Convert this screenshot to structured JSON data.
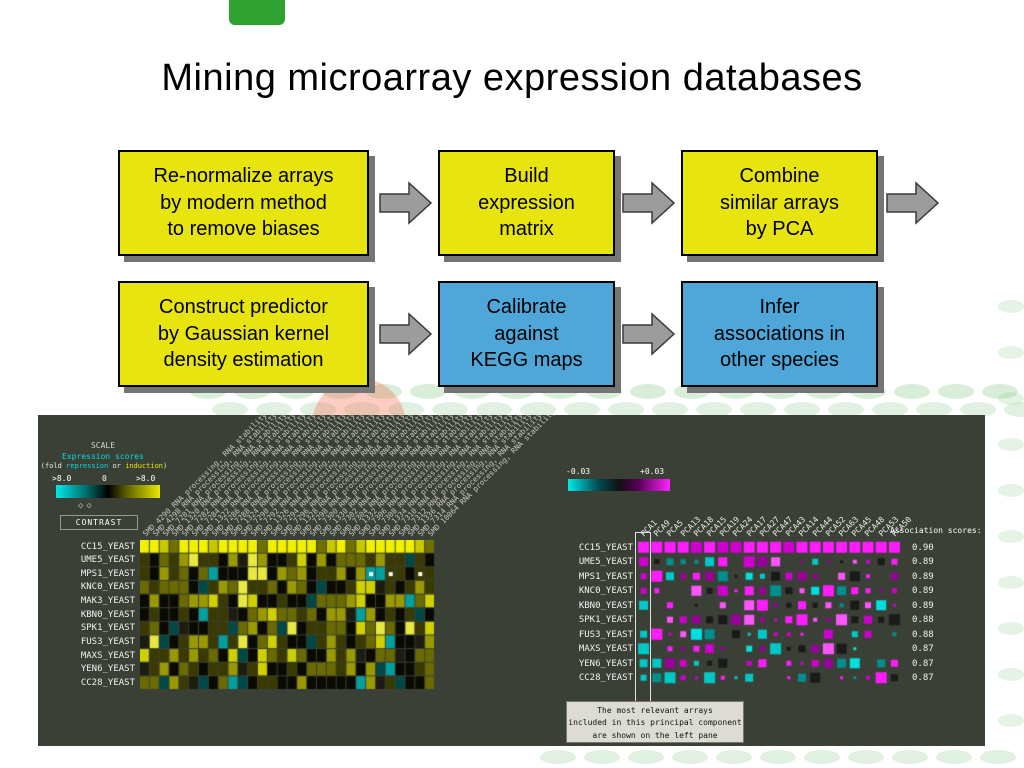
{
  "title": "Mining microarray expression databases",
  "colors": {
    "yellow_box": "#e7e410",
    "blue_box": "#4fa6d8",
    "arrow_fill": "#9c9c9c",
    "viewer_background": "#3b4036",
    "repression_color": "#00dddd",
    "induction_color": "#e8e800",
    "association_positive": "#ff22ff",
    "association_negative": "#00e8e8"
  },
  "flowchart": {
    "row1": [
      {
        "lines": [
          "Re-normalize arrays",
          "by modern method",
          "to remove biases"
        ]
      },
      {
        "lines": [
          "Build",
          "expression",
          "matrix"
        ]
      },
      {
        "lines": [
          "Combine",
          "similar arrays",
          "by PCA"
        ]
      }
    ],
    "row2": [
      {
        "lines": [
          "Construct predictor",
          "by Gaussian kernel",
          "density estimation"
        ]
      },
      {
        "lines": [
          "Calibrate",
          "against",
          "KEGG maps"
        ]
      },
      {
        "lines": [
          "Infer",
          "associations in",
          "other species"
        ]
      }
    ]
  },
  "viewer": {
    "scale": {
      "title": "SCALE",
      "subtitle": "Expression scores",
      "legend_prefix": "(fold ",
      "legend_repression": "repression",
      "legend_or": " or ",
      "legend_induction": "induction",
      "legend_suffix": ")",
      "min_label": ">8.0",
      "zero_label": "0",
      "max_label": ">8.0",
      "contrast_button": "CONTRAST"
    },
    "left_heatmap": {
      "row_labels": [
        "CC15_YEAST",
        "UME5_YEAST",
        "MPS1_YEAST",
        "KNC0_YEAST",
        "MAK3_YEAST",
        "KBN0_YEAST",
        "SPK1_YEAST",
        "FUS3_YEAST",
        "MAXS_YEAST",
        "YEN6_YEAST",
        "CC28_YEAST"
      ],
      "column_labels": [
        "SMD 4290 RNA processing, RNA stability",
        "SMD 4298 RNA processing, RNA stability",
        "SMD 7201 RNA processing, RNA stability",
        "SMD 1320 RNA processing, RNA stability",
        "SMD 7282 RNA processing, RNA stability",
        "SMD 7284 RNA processing, RNA stability",
        "SMD 1322 RNA processing, RNA stability",
        "SMD 7286 RNA processing, RNA stability",
        "SMD 7288 RNA processing, RNA stability",
        "SMD 1324 RNA processing, RNA stability",
        "SMD 7290 RNA processing, RNA stability",
        "SMD 7292 RNA processing, RNA stability",
        "SMD 1326 RNA processing, RNA stability",
        "SMD 7294 RNA processing, RNA stability",
        "SMD 7296 RNA processing, RNA stability",
        "SMD 1328 RNA processing, RNA stability",
        "SMD 7298 RNA processing, RNA stability",
        "SMD 7300 RNA processing, RNA stability",
        "SMD 1330 RNA processing, RNA stability",
        "SMD 7302 RNA processing, RNA stability",
        "SMD 7304 RNA processing, RNA stability",
        "SMD 1332 RNA processing, RNA stability",
        "SMD 7306 RNA processing, RNA stability",
        "SMD 7308 RNA processing, RNA stability",
        "SMD 1334 RNA processing, RNA stability",
        "SMD 7310 RNA processing, RNA stability",
        "SMD 7312 RNA processing, RNA stability",
        "SMD 1336 RNA processing, RNA stability",
        "SMD 7314 RNA processing, RNA stability",
        "SMD 10064 RNA processing, RNA stability"
      ]
    },
    "right_heatmap": {
      "scale_min": "-0.03",
      "scale_max": "+0.03",
      "column_labels": [
        "PCA1",
        "PCA9",
        "PCA5",
        "PCA13",
        "PCA18",
        "PCA15",
        "PCA19",
        "PCA24",
        "PCA17",
        "PCA27",
        "PCA47",
        "PCA43",
        "PCA14",
        "PCA44",
        "PCA52",
        "PCA63",
        "PCA45",
        "PCA48",
        "PCA53",
        "PCA50"
      ],
      "row_labels": [
        "CC15_YEAST",
        "UME5_YEAST",
        "MPS1_YEAST",
        "KNC0_YEAST",
        "KBN0_YEAST",
        "SPK1_YEAST",
        "FUS3_YEAST",
        "MAXS_YEAST",
        "YEN6_YEAST",
        "CC28_YEAST"
      ],
      "association_header": "Association scores:",
      "association_scores": [
        "0.90",
        "0.89",
        "0.89",
        "0.89",
        "0.89",
        "0.88",
        "0.88",
        "0.87",
        "0.87",
        "0.87"
      ]
    },
    "annotation_lines": [
      "The most relevant arrays",
      "included in this principal component",
      "are shown on the left pane"
    ]
  }
}
